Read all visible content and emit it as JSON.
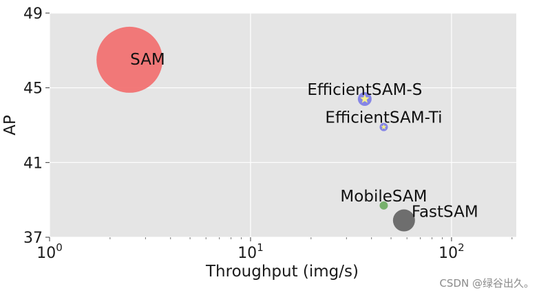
{
  "chart_data": {
    "type": "scatter",
    "xlabel": "Throughput (img/s)",
    "ylabel": "AP",
    "xscale": "log",
    "xlim": [
      1,
      210
    ],
    "ylim": [
      37,
      49
    ],
    "grid": true,
    "yticks": [
      37,
      41,
      45,
      49
    ],
    "xticks": [
      {
        "value": 1,
        "base": "10",
        "exp": "0"
      },
      {
        "value": 10,
        "base": "10",
        "exp": "1"
      },
      {
        "value": 100,
        "base": "10",
        "exp": "2"
      }
    ],
    "points": [
      {
        "label": "SAM",
        "x": 2.5,
        "y": 46.5,
        "size": 48,
        "color": "#f26b6b",
        "marker": "circle"
      },
      {
        "label": "EfficientSAM-S",
        "x": 37,
        "y": 44.4,
        "size": 10,
        "color": "#7b7be6",
        "marker": "star"
      },
      {
        "label": "EfficientSAM-Ti",
        "x": 46,
        "y": 42.9,
        "size": 6,
        "color": "#7b7be6",
        "marker": "star"
      },
      {
        "label": "MobileSAM",
        "x": 46,
        "y": 38.7,
        "size": 6,
        "color": "#6aaa5e",
        "marker": "circle"
      },
      {
        "label": "FastSAM",
        "x": 58,
        "y": 37.9,
        "size": 16,
        "color": "#606060",
        "marker": "circle"
      }
    ]
  },
  "watermark": "CSDN @绿谷出久。"
}
